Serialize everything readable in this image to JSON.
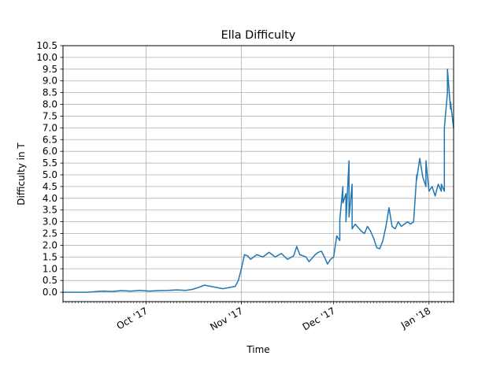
{
  "chart_data": {
    "type": "line",
    "title": "Ella Difficulty",
    "xlabel": "Time",
    "ylabel": "Difficulty in T",
    "ylim": [
      -0.4,
      10.5
    ],
    "yticks": [
      0.0,
      0.5,
      1.0,
      1.5,
      2.0,
      2.5,
      3.0,
      3.5,
      4.0,
      4.5,
      5.0,
      5.5,
      6.0,
      6.5,
      7.0,
      7.5,
      8.0,
      8.5,
      9.0,
      9.5,
      10.0,
      10.5
    ],
    "xlim": [
      "2017-09-04",
      "2018-01-09"
    ],
    "xticks": [
      {
        "date": "2017-10-01",
        "label": "Oct '17"
      },
      {
        "date": "2017-11-01",
        "label": "Nov '17"
      },
      {
        "date": "2017-12-01",
        "label": "Dec '17"
      },
      {
        "date": "2018-01-01",
        "label": "Jan '18"
      }
    ],
    "grid": true,
    "series_color": "#1f77b4",
    "series": [
      {
        "x": [
          "2017-09-04",
          "2017-09-07",
          "2017-09-12",
          "2017-09-17",
          "2017-09-20",
          "2017-09-23",
          "2017-09-26",
          "2017-09-29",
          "2017-10-02",
          "2017-10-05",
          "2017-10-08",
          "2017-10-11",
          "2017-10-14",
          "2017-10-16",
          "2017-10-18",
          "2017-10-20",
          "2017-10-22",
          "2017-10-24",
          "2017-10-26",
          "2017-10-28",
          "2017-10-30",
          "2017-10-31",
          "2017-11-01",
          "2017-11-02",
          "2017-11-03",
          "2017-11-04",
          "2017-11-06",
          "2017-11-08",
          "2017-11-10",
          "2017-11-12",
          "2017-11-14",
          "2017-11-16",
          "2017-11-18",
          "2017-11-19",
          "2017-11-20",
          "2017-11-22",
          "2017-11-23",
          "2017-11-24",
          "2017-11-25",
          "2017-11-26",
          "2017-11-27",
          "2017-11-28",
          "2017-11-29",
          "2017-11-30",
          "2017-12-01",
          "2017-12-02",
          "2017-12-03",
          "2017-12-03",
          "2017-12-04",
          "2017-12-04",
          "2017-12-05",
          "2017-12-05",
          "2017-12-06",
          "2017-12-06",
          "2017-12-07",
          "2017-12-07",
          "2017-12-08",
          "2017-12-10",
          "2017-12-11",
          "2017-12-12",
          "2017-12-13",
          "2017-12-14",
          "2017-12-15",
          "2017-12-16",
          "2017-12-17",
          "2017-12-18",
          "2017-12-19",
          "2017-12-20",
          "2017-12-21",
          "2017-12-22",
          "2017-12-23",
          "2017-12-24",
          "2017-12-25",
          "2017-12-26",
          "2017-12-27",
          "2017-12-28",
          "2017-12-28",
          "2017-12-29",
          "2017-12-30",
          "2017-12-31",
          "2017-12-31",
          "2018-01-01",
          "2018-01-02",
          "2018-01-03",
          "2018-01-04",
          "2018-01-05",
          "2018-01-05",
          "2018-01-06",
          "2018-01-06",
          "2018-01-07",
          "2018-01-07",
          "2018-01-08",
          "2018-01-08",
          "2018-01-09"
        ],
        "y": [
          0.0,
          0.0,
          0.0,
          0.05,
          0.03,
          0.07,
          0.05,
          0.08,
          0.05,
          0.07,
          0.08,
          0.1,
          0.08,
          0.12,
          0.2,
          0.3,
          0.25,
          0.2,
          0.15,
          0.2,
          0.25,
          0.5,
          1.0,
          1.6,
          1.55,
          1.4,
          1.6,
          1.5,
          1.7,
          1.5,
          1.65,
          1.4,
          1.55,
          1.95,
          1.6,
          1.5,
          1.3,
          1.45,
          1.6,
          1.7,
          1.75,
          1.5,
          1.2,
          1.4,
          1.5,
          2.4,
          2.2,
          3.1,
          4.5,
          3.8,
          4.2,
          3.0,
          5.6,
          3.2,
          4.6,
          2.7,
          2.9,
          2.6,
          2.5,
          2.8,
          2.6,
          2.3,
          1.9,
          1.85,
          2.2,
          2.8,
          3.6,
          2.8,
          2.7,
          3.0,
          2.8,
          2.9,
          3.0,
          2.9,
          3.0,
          5.0,
          4.8,
          5.7,
          4.9,
          4.5,
          5.6,
          4.3,
          4.5,
          4.1,
          4.6,
          4.3,
          4.6,
          4.3,
          7.0,
          8.5,
          9.5,
          7.8,
          8.1,
          7.0
        ]
      }
    ]
  }
}
